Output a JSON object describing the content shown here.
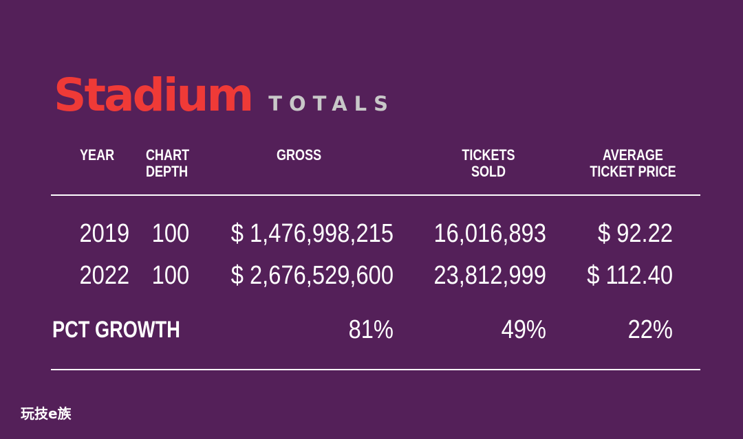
{
  "title": {
    "main": "Stadium",
    "sub": "TOTALS"
  },
  "colors": {
    "background": "#542059",
    "title_main": "#ef3a37",
    "title_sub": "#c8c8c8",
    "text": "#ffffff"
  },
  "chart_data": {
    "type": "table",
    "title": "Stadium TOTALS",
    "columns": [
      {
        "key": "year",
        "label": "YEAR"
      },
      {
        "key": "chart_depth",
        "label_line1": "CHART",
        "label_line2": "DEPTH"
      },
      {
        "key": "gross",
        "label": "GROSS"
      },
      {
        "key": "tickets_sold",
        "label_line1": "TICKETS",
        "label_line2": "SOLD"
      },
      {
        "key": "average_ticket_price",
        "label_line1": "AVERAGE",
        "label_line2": "TICKET PRICE"
      }
    ],
    "rows": [
      {
        "year": "2019",
        "chart_depth": "100",
        "gross": "$ 1,476,998,215",
        "tickets_sold": "16,016,893",
        "average_ticket_price": "$ 92.22"
      },
      {
        "year": "2022",
        "chart_depth": "100",
        "gross": "$ 2,676,529,600",
        "tickets_sold": "23,812,999",
        "average_ticket_price": "$ 112.40"
      }
    ],
    "growth": {
      "label": "PCT GROWTH",
      "gross": "81%",
      "tickets_sold": "49%",
      "average_ticket_price": "22%"
    }
  },
  "watermark": "玩技e族"
}
